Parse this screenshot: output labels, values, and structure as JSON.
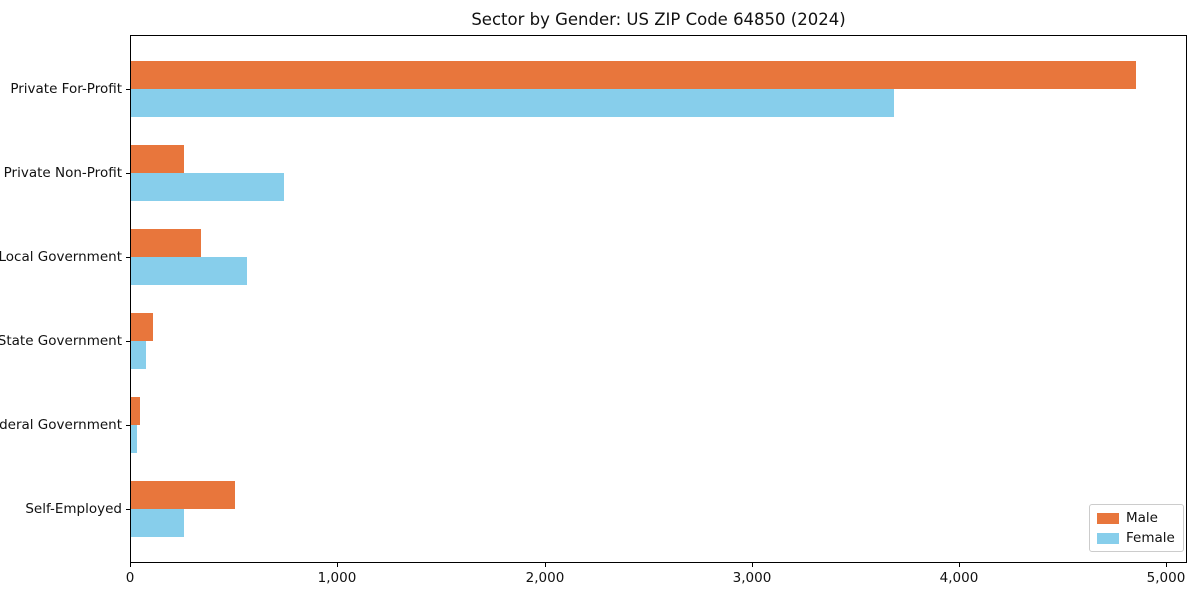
{
  "title": "Sector by Gender: US ZIP Code 64850 (2024)",
  "chart_data": {
    "type": "bar",
    "orientation": "horizontal",
    "title": "Sector by Gender: US ZIP Code 64850 (2024)",
    "xlabel": "",
    "ylabel": "",
    "categories": [
      "Private For-Profit",
      "Private Non-Profit",
      "Local Government",
      "State Government",
      "Federal Government",
      "Self-Employed"
    ],
    "series": [
      {
        "name": "Male",
        "color": "#e8763c",
        "values": [
          4850,
          255,
          340,
          105,
          45,
          500
        ]
      },
      {
        "name": "Female",
        "color": "#87ceeb",
        "values": [
          3680,
          740,
          560,
          70,
          30,
          255
        ]
      }
    ],
    "xlim": [
      0,
      5100
    ],
    "x_ticks": [
      0,
      1000,
      2000,
      3000,
      4000,
      5000
    ],
    "x_tick_labels": [
      "0",
      "1,000",
      "2,000",
      "3,000",
      "4,000",
      "5,000"
    ],
    "legend_position": "lower right",
    "grid": false,
    "background_color": "#ffffff",
    "frame_color": "#000000"
  }
}
